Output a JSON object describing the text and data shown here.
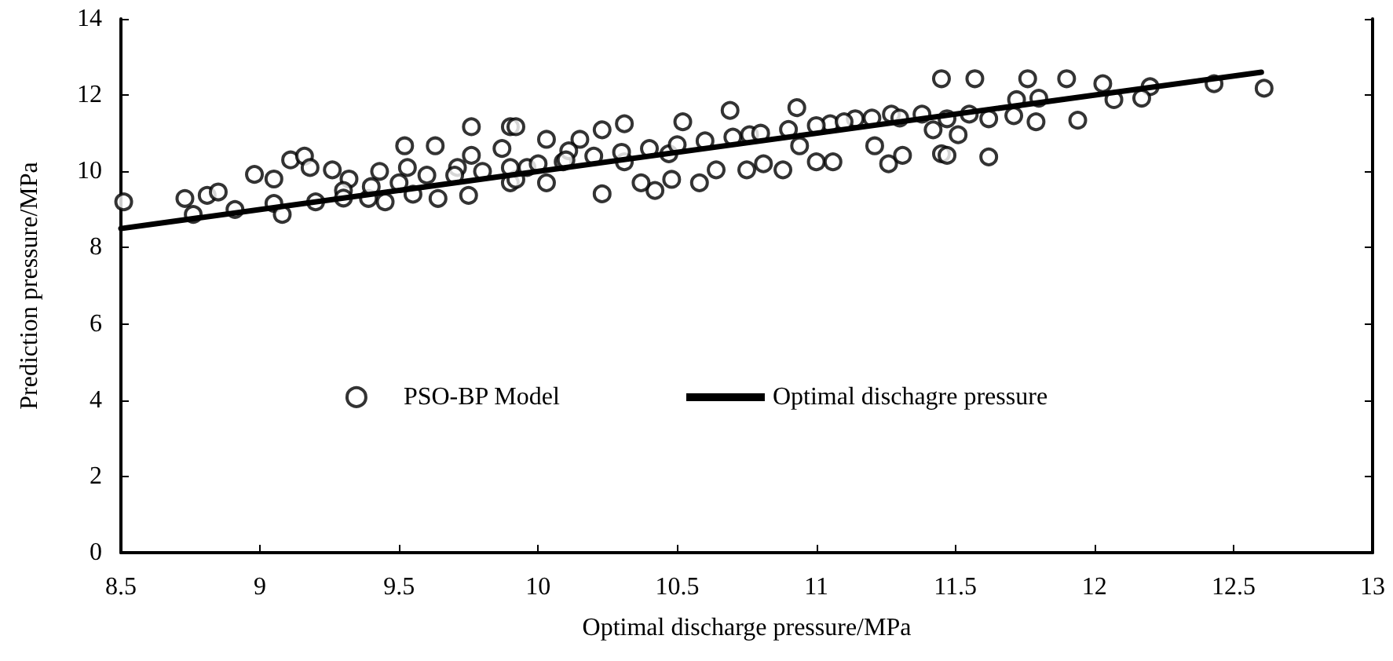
{
  "chart_data": {
    "type": "scatter",
    "xlabel": "Optimal discharge pressure/MPa",
    "ylabel": "Prediction pressure/MPa",
    "xlim": [
      8.5,
      13
    ],
    "xticks": [
      8.5,
      9,
      9.5,
      10,
      10.5,
      11,
      11.5,
      12,
      12.5,
      13
    ],
    "ylim": [
      0,
      14
    ],
    "yticks": [
      0,
      2,
      4,
      6,
      8,
      10,
      12,
      14
    ],
    "grid": false,
    "legend": "center",
    "marker": "circle",
    "series": [
      {
        "name": "PSO-BP Model",
        "color": "#000000",
        "x": [
          8.51,
          8.73,
          8.81,
          8.85,
          8.76,
          8.91,
          8.98,
          9.05,
          9.11,
          9.16,
          9.18,
          9.05,
          9.08,
          9.26,
          9.32,
          9.39,
          9.52,
          9.63,
          9.64,
          9.76,
          9.76,
          9.75,
          9.9,
          9.9,
          9.43,
          9.53,
          9.71,
          9.87,
          9.92,
          9.96,
          10.15,
          10.23,
          10.31,
          10.23,
          10.42,
          10.37,
          10.52,
          10.47,
          10.58,
          10.64,
          10.69,
          10.75,
          10.81,
          10.88,
          10.76,
          10.93,
          10.94,
          11.0,
          11.06,
          11.05,
          11.14,
          11.21,
          11.26,
          11.31,
          11.27,
          11.38,
          11.45,
          11.42,
          9.92,
          10.03,
          10.09,
          10.31,
          10.48,
          10.03,
          10.11,
          11.45,
          11.57,
          11.76,
          11.9,
          12.03,
          12.2,
          12.43,
          12.61,
          12.07,
          12.17,
          11.8,
          11.72,
          11.79,
          11.94,
          11.47,
          11.62,
          11.47,
          11.55,
          11.62,
          11.71,
          11.51,
          9.3,
          9.4,
          9.5,
          9.6,
          9.7,
          9.8,
          9.9,
          10.0,
          10.1,
          10.2,
          10.3,
          10.4,
          10.5,
          10.6,
          10.7,
          10.8,
          10.9,
          11.0,
          11.1,
          11.2,
          11.3,
          9.2,
          9.3,
          9.45,
          9.55
        ],
        "values": [
          9.2,
          9.29,
          9.37,
          9.46,
          8.87,
          9.0,
          9.92,
          9.8,
          10.3,
          10.4,
          10.1,
          9.16,
          8.87,
          10.04,
          9.8,
          9.29,
          10.67,
          10.67,
          9.29,
          11.17,
          10.42,
          9.37,
          11.17,
          9.7,
          10.0,
          10.1,
          10.1,
          10.6,
          11.17,
          10.1,
          10.84,
          11.09,
          11.25,
          9.41,
          9.5,
          9.7,
          11.3,
          10.46,
          9.7,
          10.04,
          11.6,
          10.04,
          10.2,
          10.04,
          10.96,
          11.67,
          10.67,
          10.25,
          10.25,
          11.25,
          11.38,
          10.67,
          10.2,
          10.42,
          11.5,
          11.5,
          10.46,
          11.09,
          9.79,
          9.7,
          10.25,
          10.25,
          9.79,
          10.84,
          10.54,
          12.43,
          12.43,
          12.43,
          12.43,
          12.3,
          12.22,
          12.3,
          12.18,
          11.88,
          11.92,
          11.92,
          11.88,
          11.3,
          11.34,
          10.42,
          10.38,
          11.38,
          11.5,
          11.38,
          11.46,
          10.96,
          9.5,
          9.6,
          9.7,
          9.9,
          9.9,
          10.0,
          10.1,
          10.2,
          10.3,
          10.4,
          10.5,
          10.6,
          10.7,
          10.8,
          10.9,
          11.0,
          11.1,
          11.2,
          11.3,
          11.4,
          11.4,
          9.2,
          9.3,
          9.2,
          9.4
        ]
      },
      {
        "name": "Optimal dischagre pressure",
        "type": "line",
        "color": "#000000",
        "marker": "none",
        "line_style": "solid",
        "x": [
          8.5,
          12.6
        ],
        "values": [
          8.5,
          12.6
        ]
      }
    ]
  }
}
